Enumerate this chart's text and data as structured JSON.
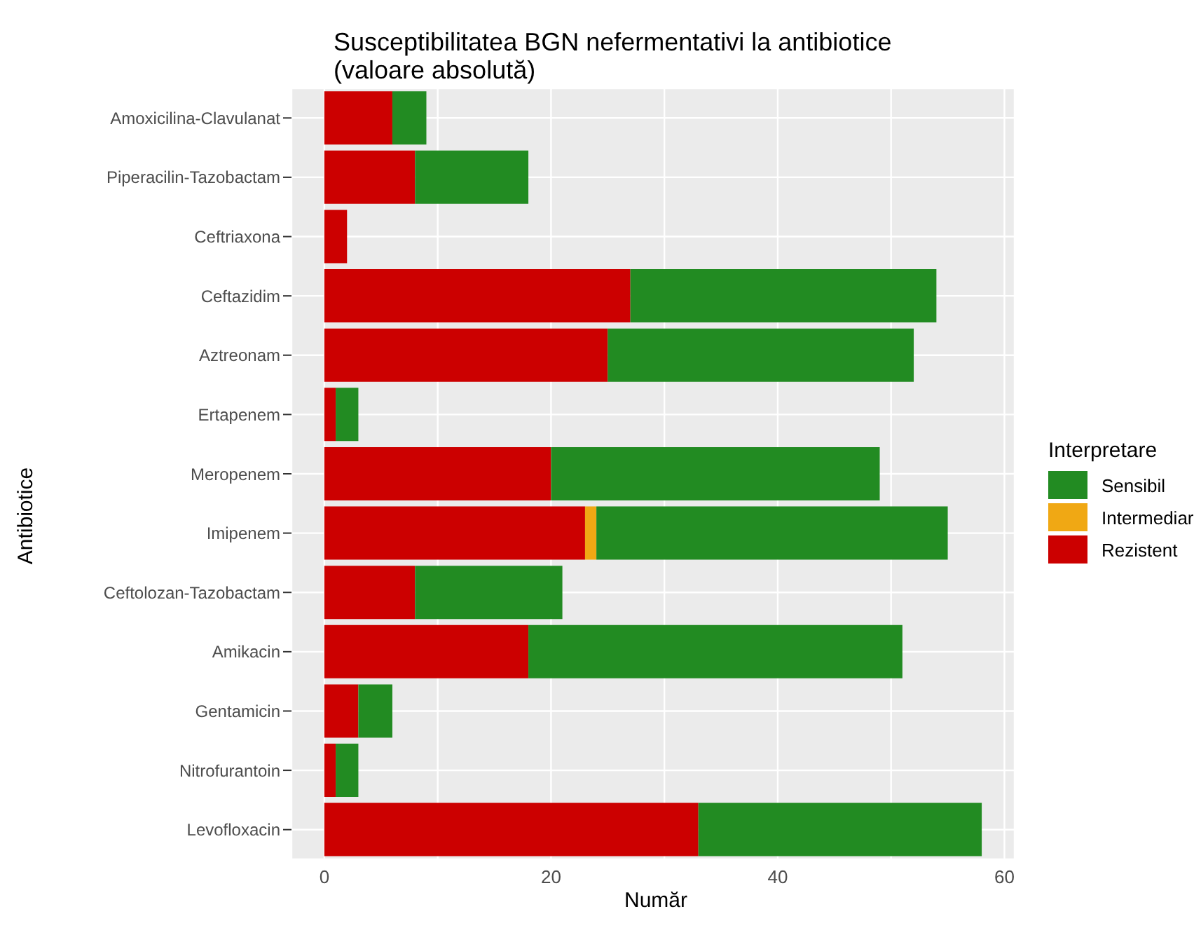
{
  "chart_data": {
    "type": "bar",
    "orientation": "horizontal",
    "stacked": true,
    "title": "Susceptibilitatea BGN nefermentativi la antibiotice\n(valoare absolută)",
    "xlabel": "Număr",
    "ylabel": "Antibiotice",
    "legend_title": "Interpretare",
    "legend": "right",
    "grid": true,
    "categories": [
      "Amoxicilina-Clavulanat",
      "Piperacilin-Tazobactam",
      "Ceftriaxona",
      "Ceftazidim",
      "Aztreonam",
      "Ertapenem",
      "Meropenem",
      "Imipenem",
      "Ceftolozan-Tazobactam",
      "Amikacin",
      "Gentamicin",
      "Nitrofurantoin",
      "Levofloxacin"
    ],
    "series": [
      {
        "name": "Rezistent",
        "color": "#cc0000",
        "values": [
          6,
          8,
          2,
          27,
          25,
          1,
          20,
          23,
          8,
          18,
          3,
          1,
          33
        ]
      },
      {
        "name": "Intermediar",
        "color": "#f0a814",
        "values": [
          null,
          null,
          null,
          null,
          null,
          null,
          null,
          1,
          null,
          null,
          null,
          null,
          null
        ]
      },
      {
        "name": "Sensibil",
        "color": "#228b22",
        "values": [
          3,
          10,
          null,
          27,
          27,
          2,
          29,
          31,
          13,
          33,
          3,
          2,
          25
        ]
      }
    ],
    "xlim": [
      -2.9,
      60.9
    ],
    "xticks": [
      0,
      {
        "value": 10,
        "label": null
      },
      20,
      {
        "value": 30,
        "label": null
      },
      40,
      {
        "value": 50,
        "label": null
      },
      60
    ]
  }
}
